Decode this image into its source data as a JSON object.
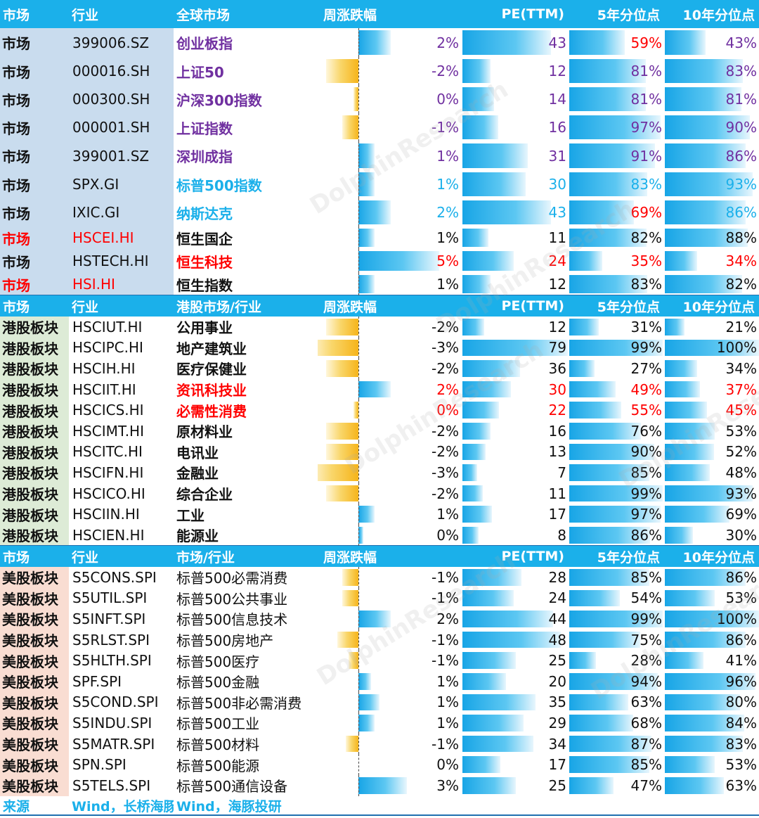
{
  "colors": {
    "header_bg": "#1bb0ea",
    "purple": "#7030a0",
    "blue": "#1bb0ea",
    "red": "#ff0000",
    "black": "#111111",
    "market_bg": "#c9dcee",
    "hk_bg": "#ddebd6",
    "us_bg": "#f9ddd2",
    "pos_bar": "#18a5e6",
    "neg_bar": "#f6b41a"
  },
  "sections": [
    {
      "header": [
        "市场",
        "行业",
        "全球市场",
        "周涨跌幅",
        "PE(TTM)",
        "5年分位点",
        "10年分位点"
      ],
      "row_bg": "#c9dcee",
      "rows": [
        {
          "c0": "市场",
          "c1": "399006.SZ",
          "c2": "创业板指",
          "chg": "2%",
          "chg_v": 2,
          "pe": "43",
          "pe_v": 43,
          "p5": "59%",
          "p10": "43%",
          "name_color": "#7030a0",
          "name_bold": true,
          "val_color": "#7030a0",
          "p5_color": "#ff0000",
          "c0_color": "#111111",
          "c1_color": "#111111"
        },
        {
          "c0": "市场",
          "c1": "000016.SH",
          "c2": "上证50",
          "chg": "-2%",
          "chg_v": -2,
          "pe": "12",
          "pe_v": 12,
          "p5": "81%",
          "p10": "83%",
          "name_color": "#7030a0",
          "name_bold": true,
          "val_color": "#7030a0",
          "p5_color": "#7030a0",
          "c0_color": "#111111",
          "c1_color": "#111111"
        },
        {
          "c0": "市场",
          "c1": "000300.SH",
          "c2": "沪深300指数",
          "chg": "0%",
          "chg_v": -0.3,
          "pe": "14",
          "pe_v": 14,
          "p5": "81%",
          "p10": "81%",
          "name_color": "#7030a0",
          "name_bold": true,
          "val_color": "#7030a0",
          "p5_color": "#7030a0",
          "c0_color": "#111111",
          "c1_color": "#111111"
        },
        {
          "c0": "市场",
          "c1": "000001.SH",
          "c2": "上证指数",
          "chg": "-1%",
          "chg_v": -1,
          "pe": "16",
          "pe_v": 16,
          "p5": "97%",
          "p10": "90%",
          "name_color": "#7030a0",
          "name_bold": true,
          "val_color": "#7030a0",
          "p5_color": "#7030a0",
          "c0_color": "#111111",
          "c1_color": "#111111"
        },
        {
          "c0": "市场",
          "c1": "399001.SZ",
          "c2": "深圳成指",
          "chg": "1%",
          "chg_v": 1,
          "pe": "31",
          "pe_v": 31,
          "p5": "91%",
          "p10": "86%",
          "name_color": "#7030a0",
          "name_bold": true,
          "val_color": "#7030a0",
          "p5_color": "#7030a0",
          "c0_color": "#111111",
          "c1_color": "#111111"
        },
        {
          "c0": "市场",
          "c1": "SPX.GI",
          "c2": "标普500指数",
          "chg": "1%",
          "chg_v": 1,
          "pe": "30",
          "pe_v": 30,
          "p5": "83%",
          "p10": "93%",
          "name_color": "#1bb0ea",
          "name_bold": true,
          "val_color": "#1bb0ea",
          "p5_color": "#1bb0ea",
          "c0_color": "#111111",
          "c1_color": "#111111"
        },
        {
          "c0": "市场",
          "c1": "IXIC.GI",
          "c2": "纳斯达克",
          "chg": "2%",
          "chg_v": 2,
          "pe": "43",
          "pe_v": 43,
          "p5": "69%",
          "p10": "86%",
          "name_color": "#1bb0ea",
          "name_bold": true,
          "val_color": "#1bb0ea",
          "p5_color": "#ff0000",
          "c0_color": "#111111",
          "c1_color": "#111111"
        },
        {
          "c0": "市场",
          "c1": "HSCEI.HI",
          "c2": "恒生国企",
          "chg": "1%",
          "chg_v": 1,
          "pe": "11",
          "pe_v": 11,
          "p5": "82%",
          "p10": "88%",
          "name_color": "#111111",
          "name_bold": true,
          "val_color": "#111111",
          "p5_color": "#111111",
          "c0_color": "#ff0000",
          "c1_color": "#ff0000"
        },
        {
          "c0": "市场",
          "c1": "HSTECH.HI",
          "c2": "恒生科技",
          "chg": "5%",
          "chg_v": 5,
          "pe": "24",
          "pe_v": 24,
          "p5": "35%",
          "p10": "34%",
          "name_color": "#ff0000",
          "name_bold": true,
          "val_color": "#ff0000",
          "p5_color": "#ff0000",
          "c0_color": "#111111",
          "c1_color": "#111111"
        },
        {
          "c0": "市场",
          "c1": "HSI.HI",
          "c2": "恒生指数",
          "chg": "1%",
          "chg_v": 1,
          "pe": "12",
          "pe_v": 12,
          "p5": "83%",
          "p10": "82%",
          "name_color": "#111111",
          "name_bold": true,
          "val_color": "#111111",
          "p5_color": "#111111",
          "c0_color": "#ff0000",
          "c1_color": "#ff0000"
        }
      ]
    },
    {
      "header": [
        "市场",
        "行业",
        "港股市场/行业",
        "周涨跌幅",
        "PE(TTM)",
        "5年分位点",
        "10年分位点"
      ],
      "row_bg": "#ddebd6",
      "rows": [
        {
          "c0": "港股板块",
          "c1": "HSCIUT.HI",
          "c2": "公用事业",
          "chg": "-2%",
          "chg_v": -2,
          "pe": "12",
          "pe_v": 12,
          "p5": "31%",
          "p10": "21%",
          "name_color": "#111111",
          "name_bold": true,
          "val_color": "#111111",
          "p5_color": "#111111",
          "c0_color": "#111111",
          "c1_color": "#111111"
        },
        {
          "c0": "港股板块",
          "c1": "HSCIPC.HI",
          "c2": "地产建筑业",
          "chg": "-3%",
          "chg_v": -3,
          "pe": "79",
          "pe_v": 79,
          "p5": "99%",
          "p10": "100%",
          "name_color": "#111111",
          "name_bold": true,
          "val_color": "#111111",
          "p5_color": "#111111",
          "c0_color": "#111111",
          "c1_color": "#111111"
        },
        {
          "c0": "港股板块",
          "c1": "HSCIH.HI",
          "c2": "医疗保健业",
          "chg": "-2%",
          "chg_v": -2,
          "pe": "36",
          "pe_v": 36,
          "p5": "27%",
          "p10": "34%",
          "name_color": "#111111",
          "name_bold": true,
          "val_color": "#111111",
          "p5_color": "#111111",
          "c0_color": "#111111",
          "c1_color": "#111111"
        },
        {
          "c0": "港股板块",
          "c1": "HSCIIT.HI",
          "c2": "资讯科技业",
          "chg": "2%",
          "chg_v": 2,
          "pe": "30",
          "pe_v": 30,
          "p5": "49%",
          "p10": "37%",
          "name_color": "#ff0000",
          "name_bold": true,
          "val_color": "#ff0000",
          "p5_color": "#ff0000",
          "c0_color": "#111111",
          "c1_color": "#111111"
        },
        {
          "c0": "港股板块",
          "c1": "HSCICS.HI",
          "c2": "必需性消费",
          "chg": "0%",
          "chg_v": -0.3,
          "pe": "22",
          "pe_v": 22,
          "p5": "55%",
          "p10": "45%",
          "name_color": "#ff0000",
          "name_bold": true,
          "val_color": "#ff0000",
          "p5_color": "#ff0000",
          "c0_color": "#111111",
          "c1_color": "#111111"
        },
        {
          "c0": "港股板块",
          "c1": "HSCIMT.HI",
          "c2": "原材料业",
          "chg": "-2%",
          "chg_v": -2,
          "pe": "16",
          "pe_v": 16,
          "p5": "76%",
          "p10": "53%",
          "name_color": "#111111",
          "name_bold": true,
          "val_color": "#111111",
          "p5_color": "#111111",
          "c0_color": "#111111",
          "c1_color": "#111111"
        },
        {
          "c0": "港股板块",
          "c1": "HSCITC.HI",
          "c2": "电讯业",
          "chg": "-2%",
          "chg_v": -2,
          "pe": "13",
          "pe_v": 13,
          "p5": "90%",
          "p10": "52%",
          "name_color": "#111111",
          "name_bold": true,
          "val_color": "#111111",
          "p5_color": "#111111",
          "c0_color": "#111111",
          "c1_color": "#111111"
        },
        {
          "c0": "港股板块",
          "c1": "HSCIFN.HI",
          "c2": "金融业",
          "chg": "-3%",
          "chg_v": -3,
          "pe": "7",
          "pe_v": 7,
          "p5": "85%",
          "p10": "48%",
          "name_color": "#111111",
          "name_bold": true,
          "val_color": "#111111",
          "p5_color": "#111111",
          "c0_color": "#111111",
          "c1_color": "#111111"
        },
        {
          "c0": "港股板块",
          "c1": "HSCICO.HI",
          "c2": "综合企业",
          "chg": "-2%",
          "chg_v": -2,
          "pe": "11",
          "pe_v": 11,
          "p5": "99%",
          "p10": "93%",
          "name_color": "#111111",
          "name_bold": true,
          "val_color": "#111111",
          "p5_color": "#111111",
          "c0_color": "#111111",
          "c1_color": "#111111"
        },
        {
          "c0": "港股板块",
          "c1": "HSCIIN.HI",
          "c2": "工业",
          "chg": "1%",
          "chg_v": 1,
          "pe": "17",
          "pe_v": 17,
          "p5": "97%",
          "p10": "69%",
          "name_color": "#111111",
          "name_bold": true,
          "val_color": "#111111",
          "p5_color": "#111111",
          "c0_color": "#111111",
          "c1_color": "#111111"
        },
        {
          "c0": "港股板块",
          "c1": "HSCIEN.HI",
          "c2": "能源业",
          "chg": "0%",
          "chg_v": 0.3,
          "pe": "8",
          "pe_v": 8,
          "p5": "86%",
          "p10": "30%",
          "name_color": "#111111",
          "name_bold": true,
          "val_color": "#111111",
          "p5_color": "#111111",
          "c0_color": "#111111",
          "c1_color": "#111111"
        }
      ]
    },
    {
      "header": [
        "市场",
        "行业",
        "市场/行业",
        "周涨跌幅",
        "PE(TTM)",
        "5年分位点",
        "10年分位点"
      ],
      "row_bg": "#f9ddd2",
      "rows": [
        {
          "c0": "美股板块",
          "c1": "S5CONS.SPI",
          "c2": "标普500必需消费",
          "chg": "-1%",
          "chg_v": -1,
          "pe": "28",
          "pe_v": 28,
          "p5": "85%",
          "p10": "86%",
          "name_color": "#111111",
          "name_bold": false,
          "val_color": "#111111",
          "p5_color": "#111111",
          "c0_color": "#111111",
          "c1_color": "#111111"
        },
        {
          "c0": "美股板块",
          "c1": "S5UTIL.SPI",
          "c2": "标普500公共事业",
          "chg": "-1%",
          "chg_v": -1,
          "pe": "24",
          "pe_v": 24,
          "p5": "54%",
          "p10": "53%",
          "name_color": "#111111",
          "name_bold": false,
          "val_color": "#111111",
          "p5_color": "#111111",
          "c0_color": "#111111",
          "c1_color": "#111111"
        },
        {
          "c0": "美股板块",
          "c1": "S5INFT.SPI",
          "c2": "标普500信息技术",
          "chg": "2%",
          "chg_v": 2,
          "pe": "44",
          "pe_v": 44,
          "p5": "99%",
          "p10": "100%",
          "name_color": "#111111",
          "name_bold": false,
          "val_color": "#111111",
          "p5_color": "#111111",
          "c0_color": "#111111",
          "c1_color": "#111111"
        },
        {
          "c0": "美股板块",
          "c1": "S5RLST.SPI",
          "c2": "标普500房地产",
          "chg": "-1%",
          "chg_v": -1.3,
          "pe": "48",
          "pe_v": 48,
          "p5": "75%",
          "p10": "86%",
          "name_color": "#111111",
          "name_bold": false,
          "val_color": "#111111",
          "p5_color": "#111111",
          "c0_color": "#111111",
          "c1_color": "#111111"
        },
        {
          "c0": "美股板块",
          "c1": "S5HLTH.SPI",
          "c2": "标普500医疗",
          "chg": "-1%",
          "chg_v": -0.6,
          "pe": "25",
          "pe_v": 25,
          "p5": "28%",
          "p10": "41%",
          "name_color": "#111111",
          "name_bold": false,
          "val_color": "#111111",
          "p5_color": "#111111",
          "c0_color": "#111111",
          "c1_color": "#111111"
        },
        {
          "c0": "美股板块",
          "c1": "SPF.SPI",
          "c2": "标普500金融",
          "chg": "1%",
          "chg_v": 0.8,
          "pe": "20",
          "pe_v": 20,
          "p5": "94%",
          "p10": "96%",
          "name_color": "#111111",
          "name_bold": false,
          "val_color": "#111111",
          "p5_color": "#111111",
          "c0_color": "#111111",
          "c1_color": "#111111"
        },
        {
          "c0": "美股板块",
          "c1": "S5COND.SPI",
          "c2": "标普500非必需消费",
          "chg": "1%",
          "chg_v": 1.3,
          "pe": "35",
          "pe_v": 35,
          "p5": "63%",
          "p10": "80%",
          "name_color": "#111111",
          "name_bold": false,
          "val_color": "#111111",
          "p5_color": "#111111",
          "c0_color": "#111111",
          "c1_color": "#111111"
        },
        {
          "c0": "美股板块",
          "c1": "S5INDU.SPI",
          "c2": "标普500工业",
          "chg": "1%",
          "chg_v": 1,
          "pe": "29",
          "pe_v": 29,
          "p5": "68%",
          "p10": "84%",
          "name_color": "#111111",
          "name_bold": false,
          "val_color": "#111111",
          "p5_color": "#111111",
          "c0_color": "#111111",
          "c1_color": "#111111"
        },
        {
          "c0": "美股板块",
          "c1": "S5MATR.SPI",
          "c2": "标普500材料",
          "chg": "-1%",
          "chg_v": -0.8,
          "pe": "34",
          "pe_v": 34,
          "p5": "87%",
          "p10": "83%",
          "name_color": "#111111",
          "name_bold": false,
          "val_color": "#111111",
          "p5_color": "#111111",
          "c0_color": "#111111",
          "c1_color": "#111111"
        },
        {
          "c0": "美股板块",
          "c1": "SPN.SPI",
          "c2": "标普500能源",
          "chg": "0%",
          "chg_v": 0,
          "pe": "17",
          "pe_v": 17,
          "p5": "85%",
          "p10": "53%",
          "name_color": "#111111",
          "name_bold": false,
          "val_color": "#111111",
          "p5_color": "#111111",
          "c0_color": "#111111",
          "c1_color": "#111111"
        },
        {
          "c0": "美股板块",
          "c1": "S5TELS.SPI",
          "c2": "标普500通信设备",
          "chg": "3%",
          "chg_v": 3,
          "pe": "25",
          "pe_v": 25,
          "p5": "47%",
          "p10": "63%",
          "name_color": "#111111",
          "name_bold": false,
          "val_color": "#111111",
          "p5_color": "#111111",
          "c0_color": "#111111",
          "c1_color": "#111111"
        }
      ]
    }
  ],
  "footer": {
    "label": "来源",
    "source_1": "Wind，长桥海豚",
    "source_2": "Wind，海豚投研"
  },
  "watermark": [
    "海豚投研",
    "DolphinResearch"
  ]
}
